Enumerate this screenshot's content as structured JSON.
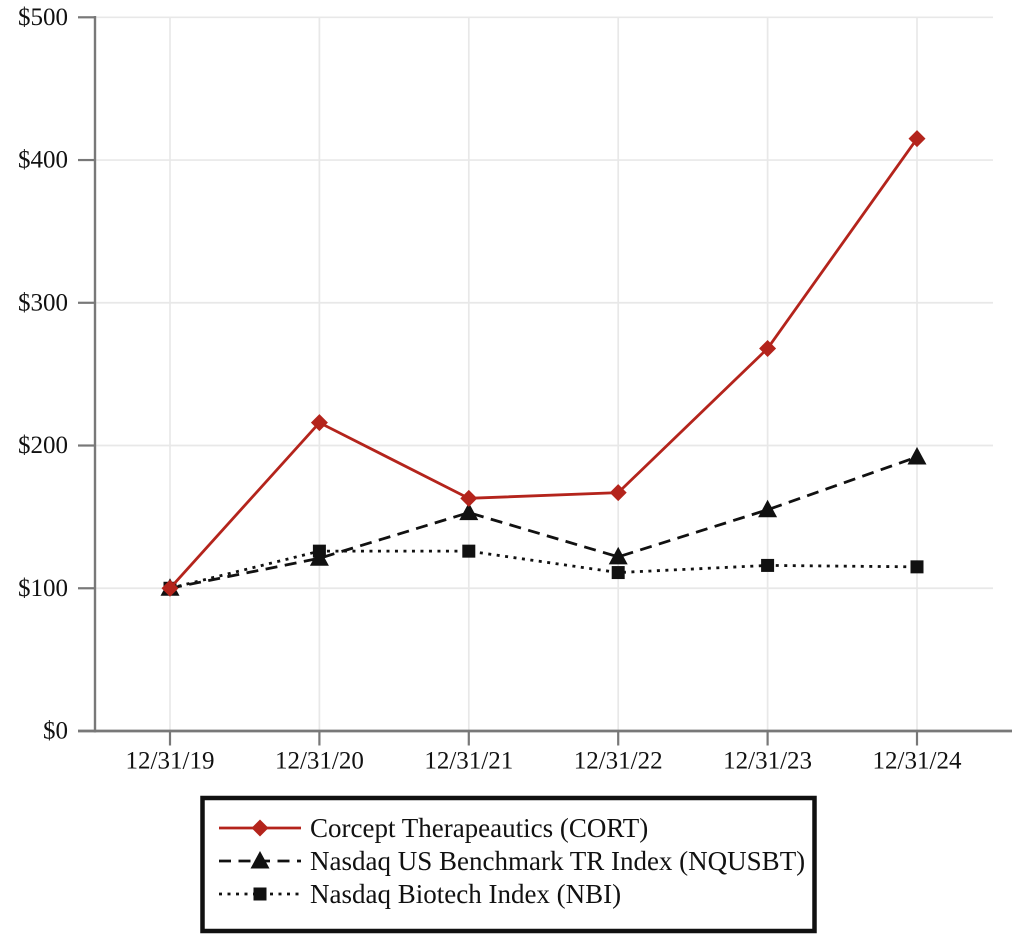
{
  "chart_data": {
    "type": "line",
    "title": "",
    "xlabel": "",
    "ylabel": "",
    "categories": [
      "12/31/19",
      "12/31/20",
      "12/31/21",
      "12/31/22",
      "12/31/23",
      "12/31/24"
    ],
    "series": [
      {
        "name": "Corcept Therapeautics (CORT)",
        "values": [
          100,
          216,
          163,
          167,
          268,
          415
        ],
        "color": "#b4241c",
        "marker": "diamond",
        "line_style": "solid"
      },
      {
        "name": "Nasdaq US Benchmark TR Index (NQUSBT)",
        "values": [
          100,
          121,
          153,
          122,
          155,
          192
        ],
        "color": "#111111",
        "marker": "triangle",
        "line_style": "dashed"
      },
      {
        "name": "Nasdaq Biotech Index (NBI)",
        "values": [
          100,
          126,
          126,
          111,
          116,
          115
        ],
        "color": "#111111",
        "marker": "square",
        "line_style": "dotted"
      }
    ],
    "ylim": [
      0,
      500
    ],
    "y_ticks": [
      0,
      100,
      200,
      300,
      400,
      500
    ],
    "y_tick_labels": [
      "$0",
      "$100",
      "$200",
      "$300",
      "$400",
      "$500"
    ],
    "grid": true,
    "legend_position": "bottom"
  },
  "legend": {
    "entries": [
      "Corcept Therapeautics (CORT)",
      "Nasdaq US Benchmark TR Index (NQUSBT)",
      "Nasdaq Biotech Index (NBI)"
    ]
  },
  "colors": {
    "series_red": "#b4241c",
    "series_black": "#111111",
    "gridline": "#e8e8e8",
    "axis": "#787878",
    "background": "#ffffff",
    "legend_border": "#111111"
  }
}
